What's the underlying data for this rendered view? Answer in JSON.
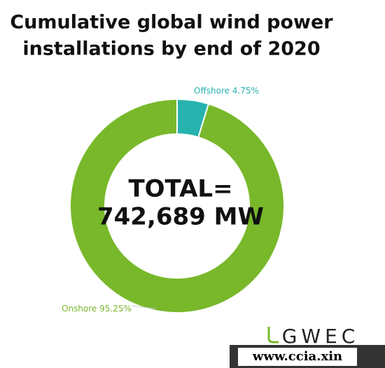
{
  "chart_data": {
    "type": "donut",
    "title_lines": [
      "Cumulative global wind power",
      "installations by end of 2020"
    ],
    "categories": [
      "Offshore",
      "Onshore"
    ],
    "values": [
      4.75,
      95.25
    ],
    "value_labels": [
      "4.75%",
      "95.25%"
    ],
    "colors": [
      "#27b3ae",
      "#78b82a"
    ],
    "center_text": [
      "TOTAL=",
      "742,689 MW"
    ],
    "logo": "GWEC",
    "watermark": "www.ccia.xin"
  }
}
